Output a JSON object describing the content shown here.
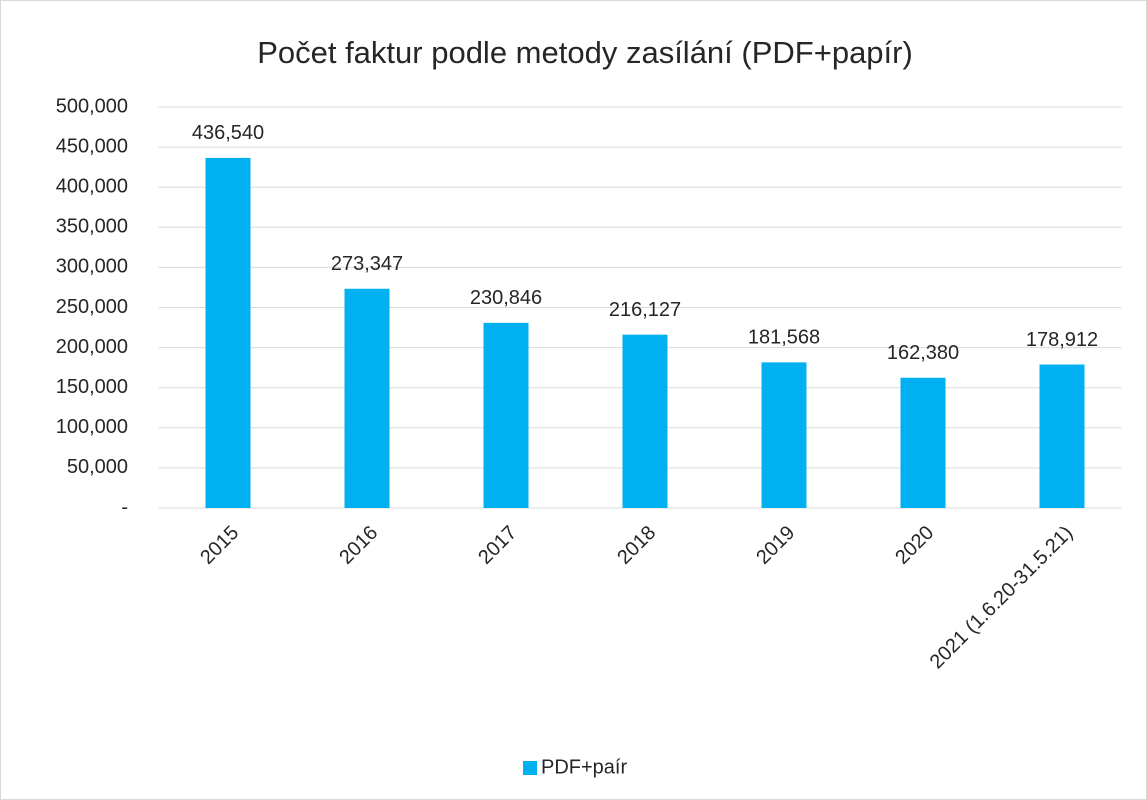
{
  "chart_data": {
    "type": "bar",
    "title": "Počet faktur podle metody zasílání (PDF+papír)",
    "categories": [
      "2015",
      "2016",
      "2017",
      "2018",
      "2019",
      "2020",
      "2021 (1.6.20-31.5.21)"
    ],
    "series": [
      {
        "name": "PDF+paír",
        "color": "#00b0f0",
        "values": [
          436540,
          273347,
          230846,
          216127,
          181568,
          162380,
          178912
        ],
        "value_labels": [
          "436,540",
          "273,347",
          "230,846",
          "216,127",
          "181,568",
          "162,380",
          "178,912"
        ]
      }
    ],
    "ylim": [
      0,
      500000
    ],
    "yticks": [
      {
        "value": 0,
        "label": "-"
      },
      {
        "value": 50000,
        "label": "50,000"
      },
      {
        "value": 100000,
        "label": "100,000"
      },
      {
        "value": 150000,
        "label": "150,000"
      },
      {
        "value": 200000,
        "label": "200,000"
      },
      {
        "value": 250000,
        "label": "250,000"
      },
      {
        "value": 300000,
        "label": "300,000"
      },
      {
        "value": 350000,
        "label": "350,000"
      },
      {
        "value": 400000,
        "label": "400,000"
      },
      {
        "value": 450000,
        "label": "450,000"
      },
      {
        "value": 500000,
        "label": "500,000"
      }
    ],
    "grid": true,
    "legend": "bottom"
  }
}
